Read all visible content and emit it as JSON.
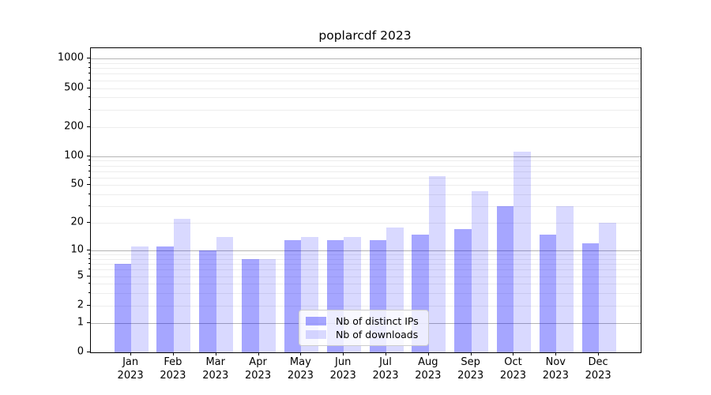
{
  "title": "poplarcdf 2023",
  "legend": {
    "items": [
      {
        "label": "Nb of distinct IPs"
      },
      {
        "label": "Nb of downloads"
      }
    ]
  },
  "colors": {
    "distinct_ips": "rgba(0,0,255,0.35)",
    "downloads": "rgba(0,0,255,0.15)",
    "major_gridline": "#b4b4b4",
    "minor_gridline": "#ededed",
    "axis": "#000000",
    "legend_border": "#cccccc"
  },
  "chart_data": {
    "type": "bar",
    "title": "poplarcdf 2023",
    "categories": [
      "Jan",
      "Feb",
      "Mar",
      "Apr",
      "May",
      "Jun",
      "Jul",
      "Aug",
      "Sep",
      "Oct",
      "Nov",
      "Dec"
    ],
    "year": "2023",
    "series": [
      {
        "name": "Nb of distinct IPs",
        "color_key": "distinct_ips",
        "values": [
          7,
          11,
          10,
          8,
          13,
          13,
          13,
          15,
          17,
          30,
          15,
          12
        ]
      },
      {
        "name": "Nb of downloads",
        "color_key": "downloads",
        "values": [
          11,
          22,
          14,
          8,
          14,
          14,
          18,
          62,
          43,
          112,
          30,
          20
        ]
      }
    ],
    "yscale": "log1p",
    "yticks": [
      0,
      1,
      2,
      5,
      10,
      20,
      50,
      100,
      200,
      500,
      1000
    ],
    "ylim": [
      0,
      1280
    ],
    "grid": true,
    "legend_position": "lower center"
  }
}
